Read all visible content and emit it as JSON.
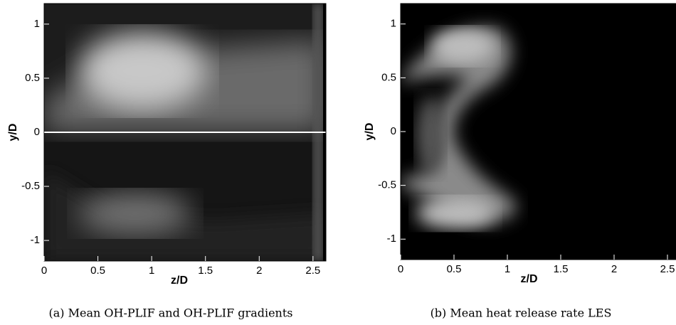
{
  "chart_data": [
    {
      "type": "image",
      "xlabel": "z/D",
      "ylabel": "y/D",
      "xlim": [
        0,
        2.62
      ],
      "ylim": [
        -1.19,
        1.19
      ],
      "xticks": [
        0,
        0.5,
        1,
        1.5,
        2,
        2.5
      ],
      "yticks": [
        -1,
        -0.5,
        0,
        0.5,
        1
      ],
      "caption": "(a) Mean OH-PLIF and OH-PLIF gradients"
    },
    {
      "type": "image",
      "xlabel": "z/D",
      "ylabel": "y/D",
      "xlim": [
        0,
        2.58
      ],
      "ylim": [
        -1.19,
        1.19
      ],
      "xticks": [
        0,
        0.5,
        1,
        1.5,
        2,
        2.5
      ],
      "yticks": [
        -1,
        -0.5,
        0,
        0.5,
        1
      ],
      "caption": "(b) Mean heat release rate LES"
    }
  ]
}
